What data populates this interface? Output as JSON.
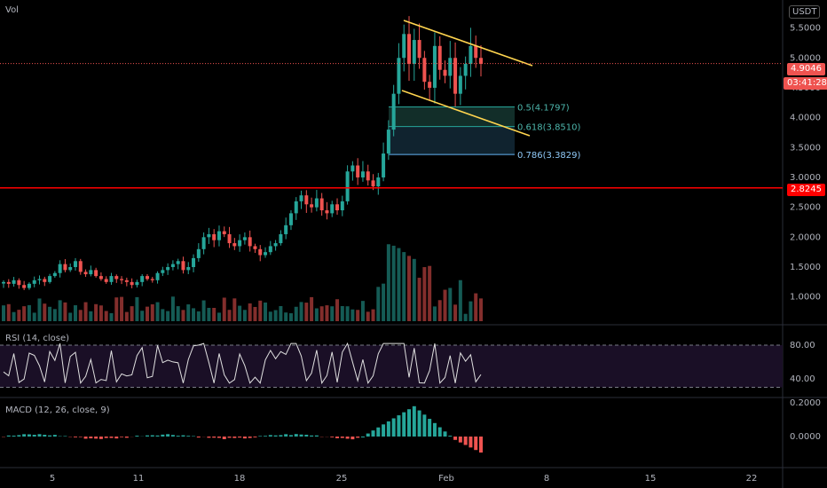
{
  "header": {
    "vol_label": "Vol",
    "currency": "USDT"
  },
  "price_tags": {
    "last_price": "4.9046",
    "countdown": "03:41:28",
    "support": "2.8245"
  },
  "fib_labels": [
    "0.5(4.1797)",
    "0.618(3.8510)",
    "0.786(3.3829)"
  ],
  "rsi": {
    "title": "RSI (14, close)",
    "ticks": [
      "80.00",
      "40.00"
    ]
  },
  "macd": {
    "title": "MACD (12, 26, close, 9)",
    "ticks": [
      "0.2000",
      "0.0000"
    ]
  },
  "colors": {
    "up": "#26a69a",
    "down": "#ef5350",
    "support_line": "#ff0000",
    "trend_line": "#ffd54f",
    "rsi_line": "#e0e0e0",
    "rsi_bg": "#1a0f26"
  },
  "chart_data": {
    "type": "candlestick",
    "price_axis_ticks": [
      "5.5000",
      "5.0000",
      "4.5000",
      "4.0000",
      "3.5000",
      "3.0000",
      "2.5000",
      "2.0000",
      "1.5000",
      "1.0000"
    ],
    "x_ticks": [
      "5",
      "11",
      "18",
      "25",
      "Feb",
      "8",
      "15",
      "22"
    ],
    "ylim": [
      0.55,
      5.85
    ],
    "close_series": [
      1.25,
      1.22,
      1.28,
      1.2,
      1.15,
      1.22,
      1.28,
      1.3,
      1.25,
      1.35,
      1.4,
      1.55,
      1.45,
      1.5,
      1.6,
      1.42,
      1.38,
      1.45,
      1.35,
      1.3,
      1.25,
      1.35,
      1.3,
      1.28,
      1.25,
      1.2,
      1.25,
      1.35,
      1.3,
      1.28,
      1.4,
      1.45,
      1.5,
      1.55,
      1.6,
      1.45,
      1.5,
      1.65,
      1.8,
      2.0,
      2.05,
      1.95,
      2.1,
      2.05,
      1.9,
      1.85,
      1.95,
      2.0,
      1.85,
      1.8,
      1.7,
      1.75,
      1.85,
      1.9,
      2.05,
      2.2,
      2.4,
      2.6,
      2.7,
      2.55,
      2.5,
      2.65,
      2.45,
      2.4,
      2.55,
      2.45,
      2.6,
      3.1,
      3.2,
      3.0,
      3.1,
      2.95,
      2.85,
      3.0,
      3.4,
      3.8,
      4.4,
      5.0,
      5.4,
      4.9,
      5.3,
      5.0,
      4.6,
      4.5,
      5.2,
      4.8,
      4.7,
      5.0,
      4.4,
      4.7,
      4.9,
      5.2,
      5.0,
      4.9
    ],
    "support_level": 2.8245,
    "last_price": 4.9046,
    "fib_levels": [
      4.1797,
      3.851,
      3.3829
    ],
    "rsi_range": [
      20,
      100
    ],
    "rsi_levels": [
      80,
      30
    ]
  }
}
